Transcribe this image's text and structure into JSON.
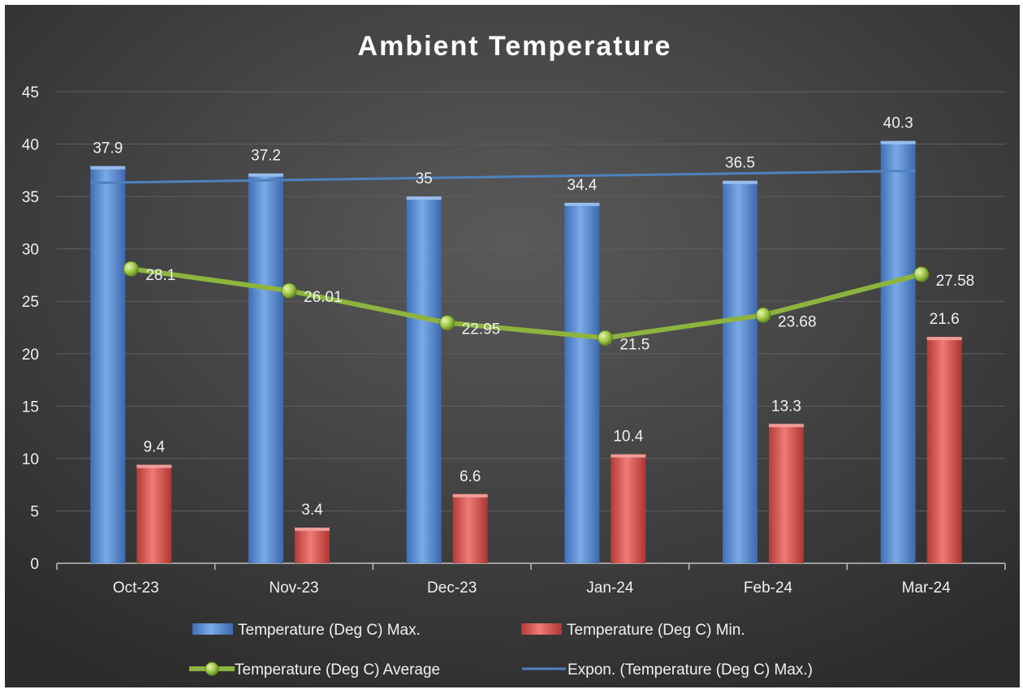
{
  "chart_data": {
    "type": "bar",
    "title": "Ambient Temperature",
    "categories": [
      "Oct-23",
      "Nov-23",
      "Dec-23",
      "Jan-24",
      "Feb-24",
      "Mar-24"
    ],
    "ylim": [
      0,
      45
    ],
    "yticks": [
      "0",
      "5",
      "10",
      "15",
      "20",
      "25",
      "30",
      "35",
      "40",
      "45"
    ],
    "grid": true,
    "legend_position": "bottom",
    "series": [
      {
        "name": "Temperature (Deg C) Max.",
        "kind": "bar",
        "color": "#5b8fd6",
        "values": [
          37.9,
          37.2,
          35,
          34.4,
          36.5,
          40.3
        ],
        "labels": [
          "37.9",
          "37.2",
          "35",
          "34.4",
          "36.5",
          "40.3"
        ]
      },
      {
        "name": "Temperature (Deg C) Min.",
        "kind": "bar",
        "color": "#d9534f",
        "values": [
          9.4,
          3.4,
          6.6,
          10.4,
          13.3,
          21.6
        ],
        "labels": [
          "9.4",
          "3.4",
          "6.6",
          "10.4",
          "13.3",
          "21.6"
        ]
      },
      {
        "name": "Temperature (Deg C) Average",
        "kind": "line",
        "color": "#8db43e",
        "values": [
          28.1,
          26.01,
          22.95,
          21.5,
          23.68,
          27.58
        ],
        "labels": [
          "28.1",
          "26.01",
          "22.95",
          "21.5",
          "23.68",
          "27.58"
        ]
      },
      {
        "name": "Expon. (Temperature (Deg C) Max.)",
        "kind": "trendline",
        "color": "#4f81bd",
        "values": [
          36.3,
          36.5,
          36.7,
          36.95,
          37.2,
          37.45
        ]
      }
    ]
  }
}
